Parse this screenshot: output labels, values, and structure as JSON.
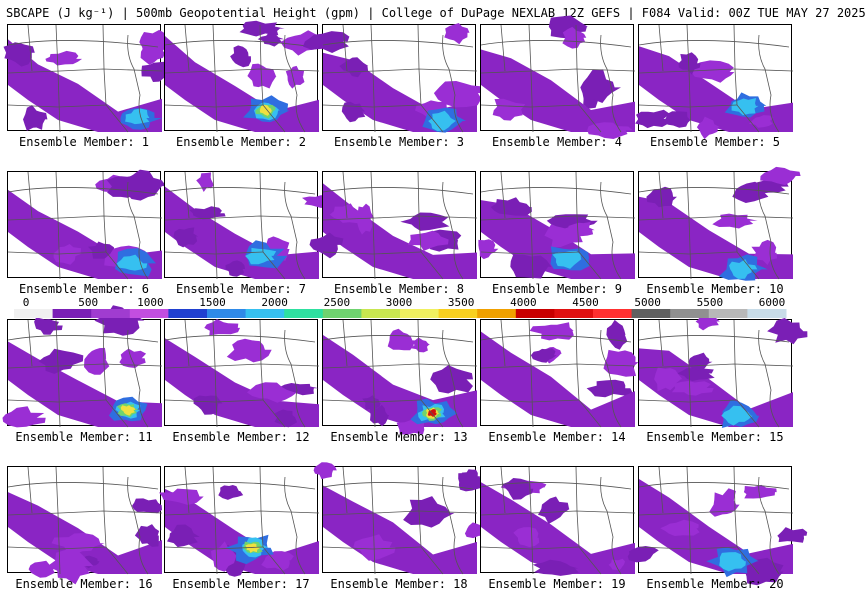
{
  "header": {
    "title": "SBCAPE (J kg⁻¹) | 500mb Geopotential Height (gpm) | College of DuPage NEXLAB 12Z GEFS | F084 Valid: 00Z TUE MAY 27 2025"
  },
  "colorbar": {
    "ticks": [
      "0",
      "500",
      "1000",
      "1500",
      "2000",
      "2500",
      "3000",
      "3500",
      "4000",
      "4500",
      "5000",
      "5500",
      "6000"
    ],
    "colors": [
      "#f0f0f0",
      "#7a1fb5",
      "#a03cd0",
      "#c24ee0",
      "#2040d0",
      "#2f8ae8",
      "#36c0f0",
      "#2ee0a0",
      "#6fd36f",
      "#c8e650",
      "#f0f060",
      "#f8d020",
      "#f0a000",
      "#c80000",
      "#e01010",
      "#ff3030",
      "#606060",
      "#909090",
      "#b8b8b8",
      "#c8dce8"
    ]
  },
  "members": [
    {
      "label": "Ensemble Member: 1",
      "intensity": 2
    },
    {
      "label": "Ensemble Member: 2",
      "intensity": 3
    },
    {
      "label": "Ensemble Member: 3",
      "intensity": 2
    },
    {
      "label": "Ensemble Member: 4",
      "intensity": 1
    },
    {
      "label": "Ensemble Member: 5",
      "intensity": 2
    },
    {
      "label": "Ensemble Member: 6",
      "intensity": 2
    },
    {
      "label": "Ensemble Member: 7",
      "intensity": 2
    },
    {
      "label": "Ensemble Member: 8",
      "intensity": 1
    },
    {
      "label": "Ensemble Member: 9",
      "intensity": 2
    },
    {
      "label": "Ensemble Member: 10",
      "intensity": 2
    },
    {
      "label": "Ensemble Member: 11",
      "intensity": 3
    },
    {
      "label": "Ensemble Member: 12",
      "intensity": 1
    },
    {
      "label": "Ensemble Member: 13",
      "intensity": 4
    },
    {
      "label": "Ensemble Member: 14",
      "intensity": 1
    },
    {
      "label": "Ensemble Member: 15",
      "intensity": 2
    },
    {
      "label": "Ensemble Member: 16",
      "intensity": 1
    },
    {
      "label": "Ensemble Member: 17",
      "intensity": 3
    },
    {
      "label": "Ensemble Member: 18",
      "intensity": 1
    },
    {
      "label": "Ensemble Member: 19",
      "intensity": 1
    },
    {
      "label": "Ensemble Member: 20",
      "intensity": 2
    }
  ]
}
